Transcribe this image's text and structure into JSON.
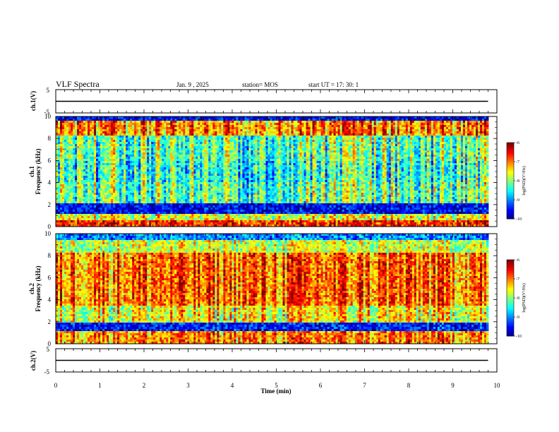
{
  "header": {
    "title": "VLF Spectra",
    "date": "Jan. 9 , 2025",
    "station": "station= MOS",
    "start": "start UT = 17: 30: 1"
  },
  "chart_data": [
    {
      "type": "line",
      "panel": "ch1-waveform",
      "ylabel": "ch.1(V)",
      "ylim": [
        -5,
        5
      ],
      "y_ticks": [
        "5",
        "-5"
      ],
      "xlim": [
        0,
        10
      ],
      "series": [
        {
          "x": [
            0,
            9.8
          ],
          "values": [
            0,
            0
          ]
        }
      ]
    },
    {
      "type": "heatmap",
      "panel": "ch1-spectrogram",
      "ylabel": "ch.1\nFrequency (kHz)",
      "ylim": [
        0,
        10
      ],
      "y_ticks": [
        "0",
        "2",
        "4",
        "6",
        "8",
        "10"
      ],
      "xlim": [
        0,
        9.8
      ],
      "colorbar": {
        "label": "log(PSD)(V²/Hz)",
        "range": [
          -10,
          -6
        ],
        "ticks": [
          "-6",
          "-7",
          "-8",
          "-9",
          "-10"
        ]
      }
    },
    {
      "type": "heatmap",
      "panel": "ch2-spectrogram",
      "ylabel": "ch.2\nFrequency (kHz)",
      "ylim": [
        0,
        10
      ],
      "y_ticks": [
        "0",
        "2",
        "4",
        "6",
        "8",
        "10"
      ],
      "xlim": [
        0,
        9.8
      ],
      "colorbar": {
        "label": "log(PSD)(V²/Hz)",
        "range": [
          -10,
          -6
        ],
        "ticks": [
          "-6",
          "-7",
          "-8",
          "-9",
          "-10"
        ]
      }
    },
    {
      "type": "line",
      "panel": "ch2-waveform",
      "ylabel": "ch.2(V)",
      "ylim": [
        -5,
        5
      ],
      "y_ticks": [
        "5",
        "-5"
      ],
      "xlim": [
        0,
        10
      ],
      "series": [
        {
          "x": [
            0,
            9.8
          ],
          "values": [
            0,
            0
          ]
        }
      ]
    }
  ],
  "x_axis": {
    "label": "Time (min)",
    "ticks": [
      "0",
      "1",
      "2",
      "3",
      "4",
      "5",
      "6",
      "7",
      "8",
      "9",
      "10"
    ]
  }
}
